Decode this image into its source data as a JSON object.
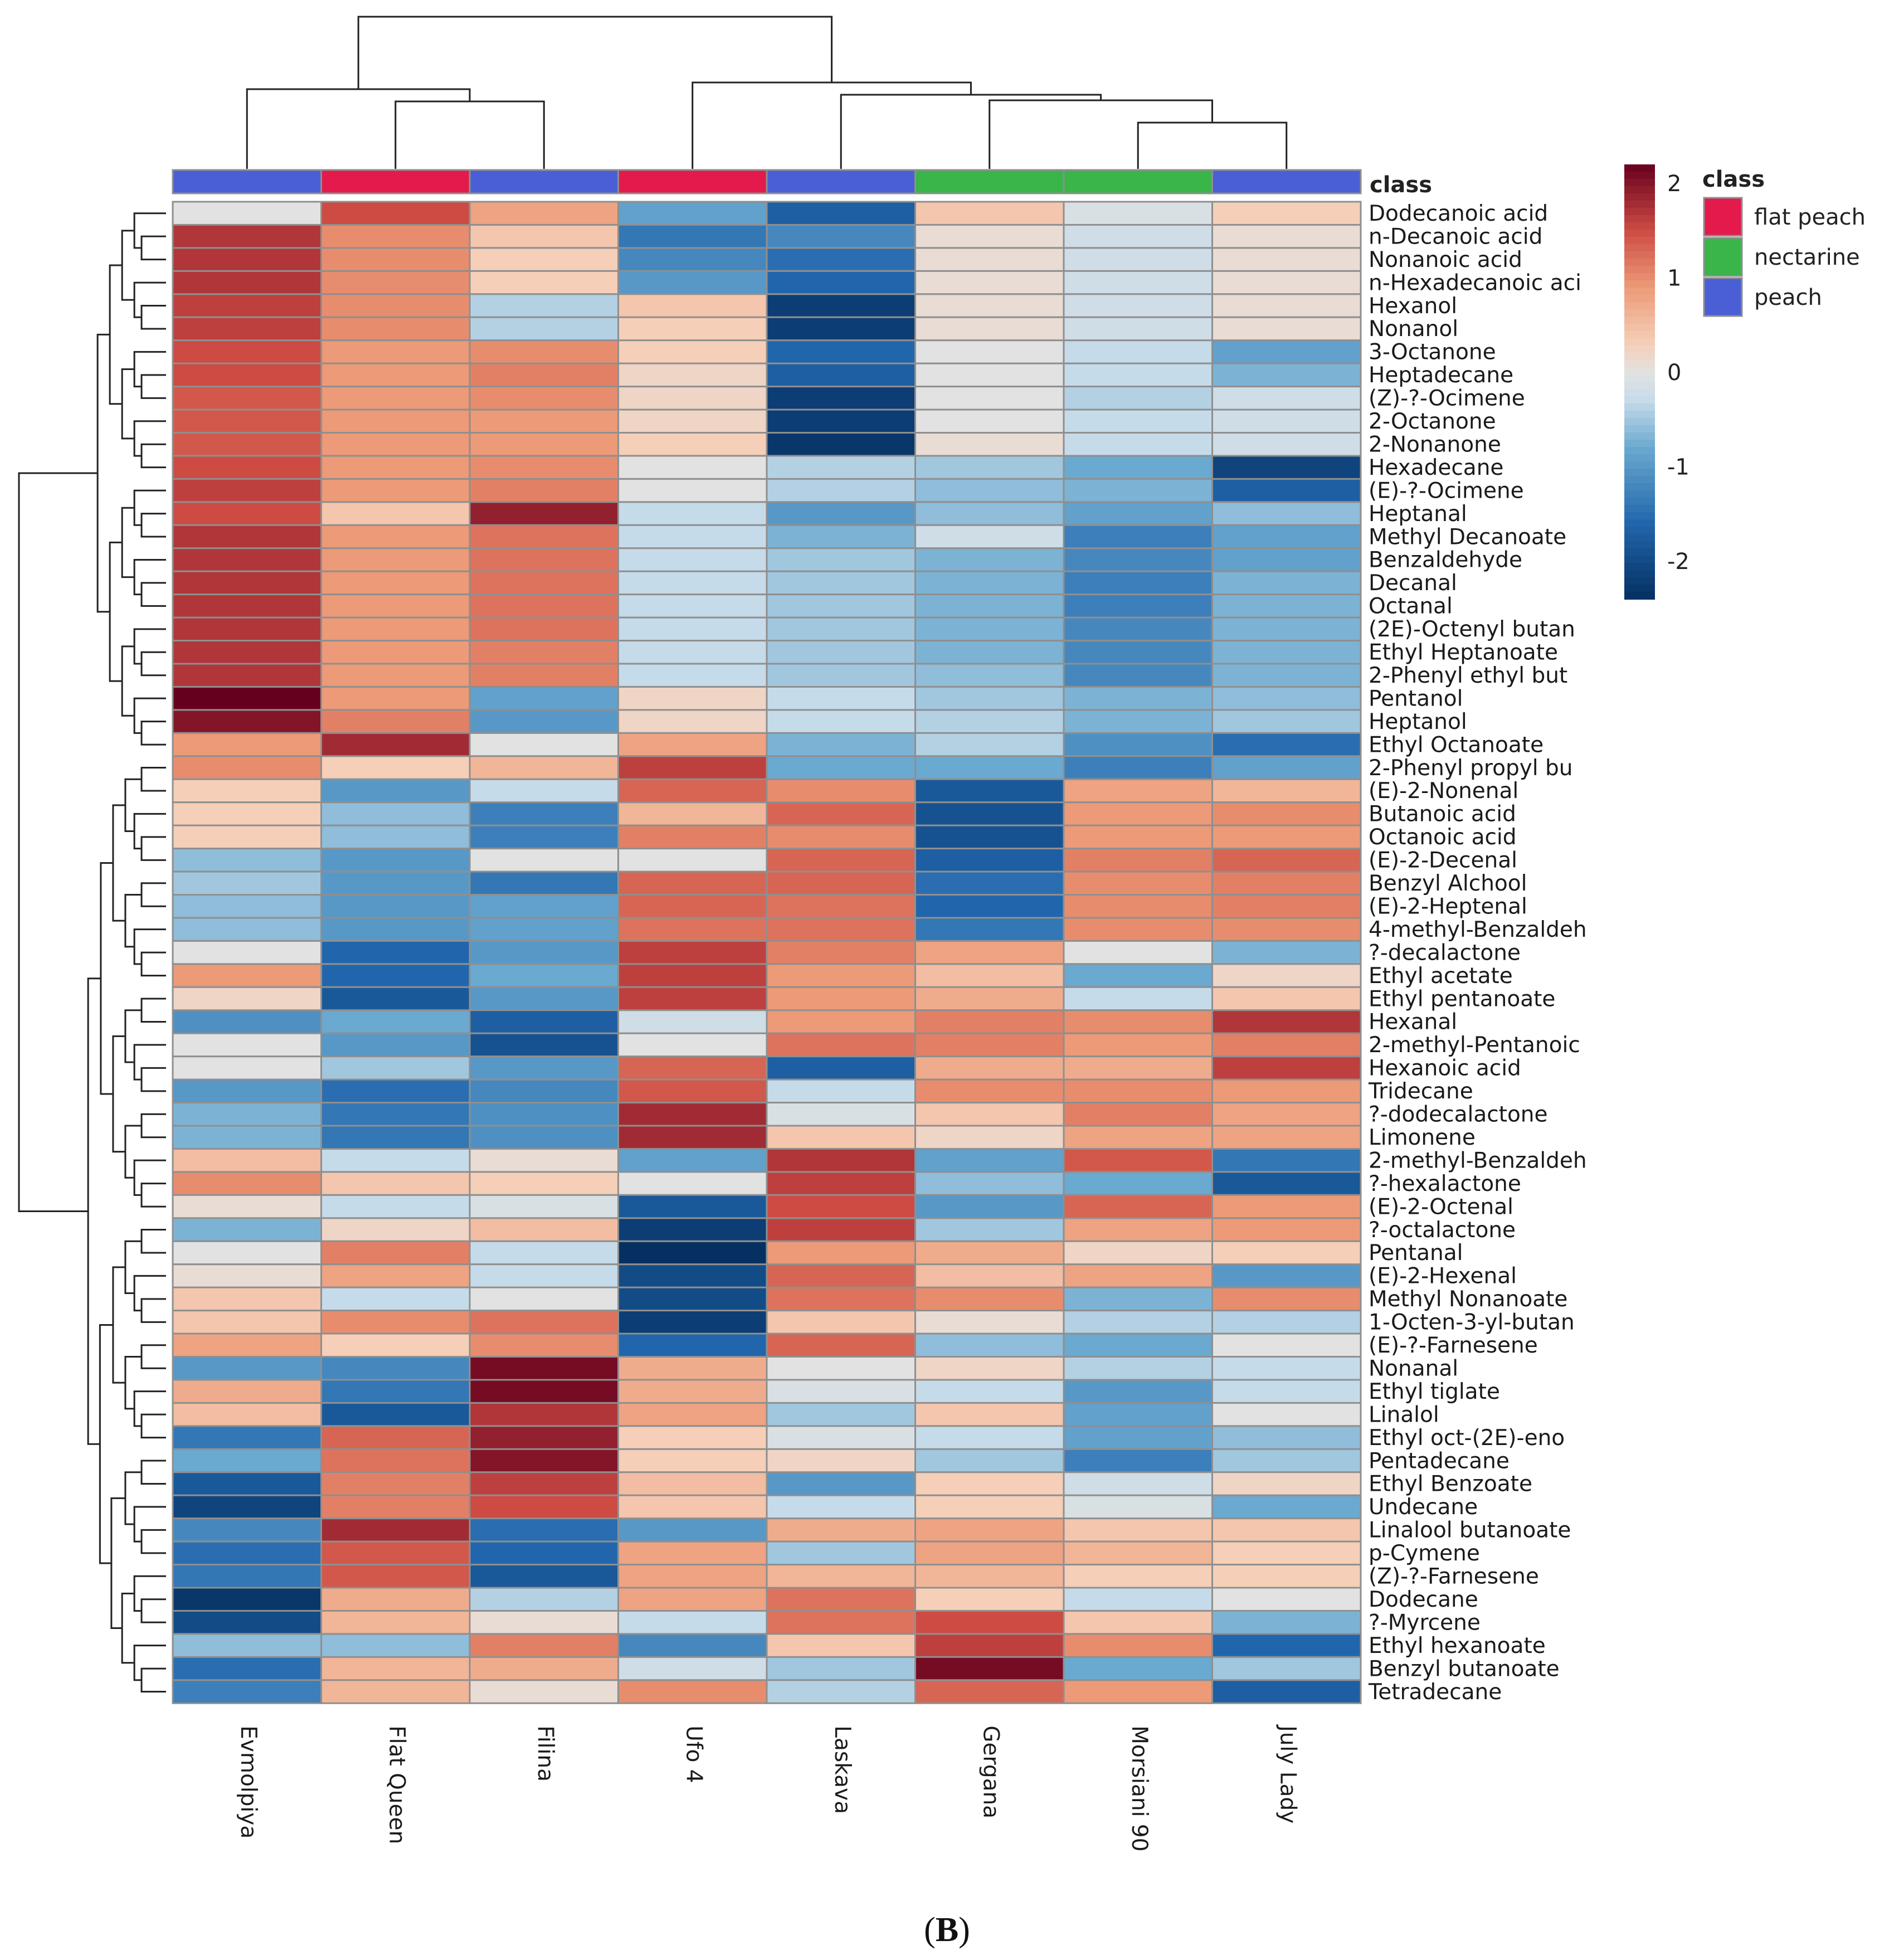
{
  "panel": {
    "label_open": "(",
    "label_letter": "B",
    "label_close": ")"
  },
  "chart_data": {
    "type": "heatmap",
    "title": "",
    "samples": [
      "Evmolpiya",
      "Flat Queen",
      "Filina",
      "Ufo 4",
      "Laskava",
      "Gergana",
      "Morsiani 90",
      "July Lady"
    ],
    "sample_class": [
      "peach",
      "flat peach",
      "peach",
      "flat peach",
      "peach",
      "nectarine",
      "nectarine",
      "peach"
    ],
    "class_annotation_label": "class",
    "legend": {
      "title": "class",
      "entries": [
        {
          "name": "flat peach",
          "color": "#e31a4b"
        },
        {
          "name": "nectarine",
          "color": "#39b54a"
        },
        {
          "name": "peach",
          "color": "#4a5fd6"
        }
      ]
    },
    "color_scale": {
      "min": -2.4,
      "max": 2.2,
      "ticks": [
        2,
        1,
        0,
        -1,
        -2
      ],
      "stops": [
        {
          "v": -2.4,
          "c": "#053061"
        },
        {
          "v": -1.6,
          "c": "#2166ac"
        },
        {
          "v": -0.8,
          "c": "#6aa9d0"
        },
        {
          "v": -0.3,
          "c": "#c6dbe9"
        },
        {
          "v": 0.0,
          "c": "#e2e2e2"
        },
        {
          "v": 0.3,
          "c": "#f5cfb8"
        },
        {
          "v": 0.9,
          "c": "#ec9a77"
        },
        {
          "v": 1.5,
          "c": "#cd4b43"
        },
        {
          "v": 2.2,
          "c": "#67001f"
        }
      ]
    },
    "rows": [
      {
        "name": "Dodecanoic acid",
        "values": [
          0.0,
          1.5,
          0.8,
          -0.9,
          -1.7,
          0.4,
          -0.1,
          0.3
        ]
      },
      {
        "name": "n-Decanoic acid",
        "values": [
          1.7,
          1.0,
          0.4,
          -1.4,
          -1.2,
          0.1,
          -0.2,
          0.1
        ]
      },
      {
        "name": "Nonanoic acid",
        "values": [
          1.7,
          1.0,
          0.3,
          -1.2,
          -1.5,
          0.1,
          -0.2,
          0.1
        ]
      },
      {
        "name": "n-Hexadecanoic aci",
        "values": [
          1.7,
          1.0,
          0.3,
          -1.0,
          -1.6,
          0.1,
          -0.2,
          0.1
        ]
      },
      {
        "name": "Hexanol",
        "values": [
          1.6,
          1.0,
          -0.4,
          0.4,
          -2.2,
          0.1,
          -0.2,
          0.1
        ]
      },
      {
        "name": "Nonanol",
        "values": [
          1.6,
          1.0,
          -0.4,
          0.3,
          -2.2,
          0.1,
          -0.2,
          0.1
        ]
      },
      {
        "name": "3-Octanone",
        "values": [
          1.5,
          0.9,
          1.0,
          0.3,
          -1.6,
          0.0,
          -0.3,
          -0.9
        ]
      },
      {
        "name": "Heptadecane",
        "values": [
          1.5,
          0.9,
          1.1,
          0.2,
          -1.7,
          0.0,
          -0.3,
          -0.7
        ]
      },
      {
        "name": "(Z)-?-Ocimene",
        "values": [
          1.4,
          0.9,
          1.0,
          0.2,
          -2.2,
          0.0,
          -0.4,
          -0.2
        ]
      },
      {
        "name": "2-Octanone",
        "values": [
          1.4,
          0.9,
          0.9,
          0.2,
          -2.2,
          0.0,
          -0.3,
          -0.2
        ]
      },
      {
        "name": "2-Nonanone",
        "values": [
          1.4,
          0.9,
          0.9,
          0.3,
          -2.3,
          0.1,
          -0.3,
          -0.2
        ]
      },
      {
        "name": "Hexadecane",
        "values": [
          1.5,
          0.9,
          1.0,
          0.0,
          -0.4,
          -0.5,
          -0.8,
          -2.1
        ]
      },
      {
        "name": "(E)-?-Ocimene",
        "values": [
          1.6,
          0.9,
          1.1,
          0.0,
          -0.4,
          -0.6,
          -0.7,
          -1.7
        ]
      },
      {
        "name": "Heptanal",
        "values": [
          1.5,
          0.4,
          1.9,
          -0.3,
          -1.0,
          -0.6,
          -0.9,
          -0.6
        ]
      },
      {
        "name": "Methyl Decanoate",
        "values": [
          1.7,
          0.9,
          1.2,
          -0.3,
          -0.7,
          -0.2,
          -1.3,
          -0.9
        ]
      },
      {
        "name": "Benzaldehyde",
        "values": [
          1.7,
          0.9,
          1.2,
          -0.3,
          -0.5,
          -0.7,
          -1.2,
          -0.9
        ]
      },
      {
        "name": "Decanal",
        "values": [
          1.7,
          0.9,
          1.2,
          -0.3,
          -0.5,
          -0.7,
          -1.3,
          -0.7
        ]
      },
      {
        "name": "Octanal",
        "values": [
          1.7,
          0.9,
          1.2,
          -0.3,
          -0.5,
          -0.7,
          -1.3,
          -0.7
        ]
      },
      {
        "name": "(2E)-Octenyl butan",
        "values": [
          1.7,
          0.9,
          1.2,
          -0.3,
          -0.5,
          -0.7,
          -1.2,
          -0.7
        ]
      },
      {
        "name": "Ethyl Heptanoate",
        "values": [
          1.7,
          0.9,
          1.1,
          -0.3,
          -0.5,
          -0.7,
          -1.2,
          -0.7
        ]
      },
      {
        "name": "2-Phenyl ethyl but",
        "values": [
          1.7,
          0.9,
          1.1,
          -0.3,
          -0.5,
          -0.6,
          -1.2,
          -0.7
        ]
      },
      {
        "name": "Pentanol",
        "values": [
          2.2,
          0.9,
          -0.9,
          0.2,
          -0.3,
          -0.5,
          -0.7,
          -0.6
        ]
      },
      {
        "name": "Heptanol",
        "values": [
          2.0,
          1.1,
          -1.0,
          0.2,
          -0.3,
          -0.4,
          -0.7,
          -0.5
        ]
      },
      {
        "name": "Ethyl Octanoate",
        "values": [
          0.9,
          1.8,
          0.0,
          0.8,
          -0.7,
          -0.4,
          -1.1,
          -1.5
        ]
      },
      {
        "name": "2-Phenyl propyl bu",
        "values": [
          1.0,
          0.3,
          0.6,
          1.6,
          -0.8,
          -0.8,
          -1.3,
          -0.9
        ]
      },
      {
        "name": "(E)-2-Nonenal",
        "values": [
          0.3,
          -1.0,
          -0.3,
          1.3,
          1.0,
          -1.8,
          0.8,
          0.6
        ]
      },
      {
        "name": "Butanoic acid",
        "values": [
          0.3,
          -0.6,
          -1.3,
          0.6,
          1.3,
          -1.9,
          0.9,
          1.0
        ]
      },
      {
        "name": "Octanoic acid",
        "values": [
          0.3,
          -0.6,
          -1.3,
          1.1,
          1.0,
          -1.9,
          0.9,
          0.9
        ]
      },
      {
        "name": "(E)-2-Decenal",
        "values": [
          -0.6,
          -1.0,
          0.0,
          0.0,
          1.3,
          -1.7,
          1.1,
          1.3
        ]
      },
      {
        "name": "Benzyl Alchool",
        "values": [
          -0.5,
          -1.0,
          -1.4,
          1.3,
          1.3,
          -1.5,
          1.0,
          1.1
        ]
      },
      {
        "name": "(E)-2-Heptenal",
        "values": [
          -0.6,
          -1.0,
          -0.9,
          1.3,
          1.2,
          -1.6,
          1.0,
          1.1
        ]
      },
      {
        "name": "4-methyl-Benzaldeh",
        "values": [
          -0.6,
          -1.0,
          -0.9,
          1.2,
          1.2,
          -1.4,
          1.0,
          1.0
        ]
      },
      {
        "name": "?-decalactone",
        "values": [
          0.0,
          -1.6,
          -1.0,
          1.6,
          1.1,
          0.8,
          0.0,
          -0.7
        ]
      },
      {
        "name": "Ethyl acetate",
        "values": [
          0.9,
          -1.6,
          -0.8,
          1.6,
          0.9,
          0.5,
          -0.8,
          0.2
        ]
      },
      {
        "name": "Ethyl pentanoate",
        "values": [
          0.2,
          -1.8,
          -1.0,
          1.6,
          0.9,
          0.7,
          -0.3,
          0.4
        ]
      },
      {
        "name": "Hexanal",
        "values": [
          -1.1,
          -0.8,
          -1.7,
          -0.2,
          0.9,
          1.1,
          1.0,
          1.7
        ]
      },
      {
        "name": "2-methyl-Pentanoic",
        "values": [
          0.0,
          -1.0,
          -1.9,
          0.0,
          1.2,
          1.1,
          0.9,
          1.1
        ]
      },
      {
        "name": "Hexanoic acid",
        "values": [
          0.0,
          -0.5,
          -1.0,
          1.3,
          -1.7,
          0.7,
          0.7,
          1.6
        ]
      },
      {
        "name": "Tridecane",
        "values": [
          -1.0,
          -1.5,
          -1.2,
          1.4,
          -0.3,
          1.0,
          1.0,
          0.9
        ]
      },
      {
        "name": "?-dodecalactone",
        "values": [
          -0.7,
          -1.4,
          -1.1,
          1.8,
          -0.1,
          0.4,
          1.1,
          0.8
        ]
      },
      {
        "name": "Limonene",
        "values": [
          -0.7,
          -1.4,
          -1.1,
          1.8,
          0.4,
          0.2,
          0.8,
          0.8
        ]
      },
      {
        "name": "2-methyl-Benzaldeh",
        "values": [
          0.5,
          -0.3,
          0.1,
          -0.9,
          1.7,
          -0.9,
          1.4,
          -1.4
        ]
      },
      {
        "name": "?-hexalactone",
        "values": [
          1.0,
          0.4,
          0.3,
          0.0,
          1.6,
          -0.6,
          -0.8,
          -1.8
        ]
      },
      {
        "name": "(E)-2-Octenal",
        "values": [
          0.1,
          -0.3,
          -0.1,
          -1.8,
          1.5,
          -1.0,
          1.3,
          0.9
        ]
      },
      {
        "name": "?-octalactone",
        "values": [
          -0.7,
          0.2,
          0.5,
          -2.2,
          1.6,
          -0.5,
          0.8,
          0.9
        ]
      },
      {
        "name": "Pentanal",
        "values": [
          0.0,
          1.1,
          -0.3,
          -2.4,
          0.9,
          0.7,
          0.2,
          0.3
        ]
      },
      {
        "name": "(E)-2-Hexenal",
        "values": [
          0.1,
          0.8,
          -0.3,
          -2.0,
          1.3,
          0.5,
          0.8,
          -1.0
        ]
      },
      {
        "name": "Methyl Nonanoate",
        "values": [
          0.4,
          -0.3,
          0.0,
          -2.0,
          1.2,
          1.0,
          -0.7,
          1.0
        ]
      },
      {
        "name": "1-Octen-3-yl-butan",
        "values": [
          0.4,
          1.0,
          1.2,
          -2.2,
          0.4,
          0.1,
          -0.4,
          -0.4
        ]
      },
      {
        "name": "(E)-?-Farnesene",
        "values": [
          0.8,
          0.3,
          1.0,
          -1.6,
          1.3,
          -0.6,
          -0.8,
          0.0
        ]
      },
      {
        "name": "Nonanal",
        "values": [
          -1.0,
          -1.2,
          2.1,
          0.7,
          0.0,
          0.2,
          -0.4,
          -0.3
        ]
      },
      {
        "name": "Ethyl tiglate",
        "values": [
          0.7,
          -1.4,
          2.1,
          0.7,
          -0.1,
          -0.3,
          -1.0,
          -0.3
        ]
      },
      {
        "name": "Linalol",
        "values": [
          0.5,
          -1.8,
          1.7,
          0.8,
          -0.5,
          0.4,
          -0.9,
          0.0
        ]
      },
      {
        "name": "Ethyl oct-(2E)-eno",
        "values": [
          -1.4,
          1.3,
          1.9,
          0.3,
          -0.1,
          -0.3,
          -0.9,
          -0.6
        ]
      },
      {
        "name": "Pentadecane",
        "values": [
          -0.8,
          1.2,
          2.0,
          0.3,
          0.2,
          -0.5,
          -1.3,
          -0.5
        ]
      },
      {
        "name": "Ethyl Benzoate",
        "values": [
          -1.8,
          1.1,
          1.6,
          0.5,
          -1.0,
          0.3,
          -0.2,
          0.2
        ]
      },
      {
        "name": "Undecane",
        "values": [
          -2.1,
          1.1,
          1.5,
          0.4,
          -0.3,
          0.3,
          -0.1,
          -0.8
        ]
      },
      {
        "name": "Linalool butanoate",
        "values": [
          -1.2,
          1.8,
          -1.5,
          -1.0,
          0.7,
          0.8,
          0.4,
          0.4
        ]
      },
      {
        "name": "p-Cymene",
        "values": [
          -1.5,
          1.4,
          -1.6,
          0.8,
          -0.5,
          0.8,
          0.6,
          0.3
        ]
      },
      {
        "name": "(Z)-?-Farnesene",
        "values": [
          -1.4,
          1.4,
          -1.8,
          0.8,
          0.6,
          0.6,
          0.3,
          0.3
        ]
      },
      {
        "name": "Dodecane",
        "values": [
          -2.3,
          0.7,
          -0.4,
          0.8,
          1.2,
          0.3,
          -0.3,
          0.0
        ]
      },
      {
        "name": "?-Myrcene",
        "values": [
          -2.0,
          0.6,
          0.1,
          -0.3,
          1.2,
          1.5,
          0.4,
          -0.7
        ]
      },
      {
        "name": "Ethyl hexanoate",
        "values": [
          -0.6,
          -0.6,
          1.1,
          -1.2,
          0.4,
          1.6,
          1.0,
          -1.6
        ]
      },
      {
        "name": "Benzyl butanoate",
        "values": [
          -1.5,
          0.6,
          0.7,
          -0.2,
          -0.5,
          2.1,
          -0.8,
          -0.5
        ]
      },
      {
        "name": "Tetradecane",
        "values": [
          -1.3,
          0.6,
          0.1,
          1.0,
          -0.4,
          1.3,
          0.9,
          -1.7
        ]
      }
    ],
    "column_dendrogram": [
      {
        "members": [
          1,
          2
        ]
      },
      {
        "members": [
          0,
          1,
          2
        ]
      },
      {
        "members": [
          6,
          7
        ]
      },
      {
        "members": [
          5,
          6,
          7
        ]
      },
      {
        "members": [
          4,
          5,
          6,
          7
        ]
      },
      {
        "members": [
          3,
          4,
          5,
          6,
          7
        ]
      },
      {
        "members": [
          0,
          1,
          2,
          3,
          4,
          5,
          6,
          7
        ]
      }
    ],
    "row_dendrogram": {
      "top_split_after_row": 24
    }
  }
}
